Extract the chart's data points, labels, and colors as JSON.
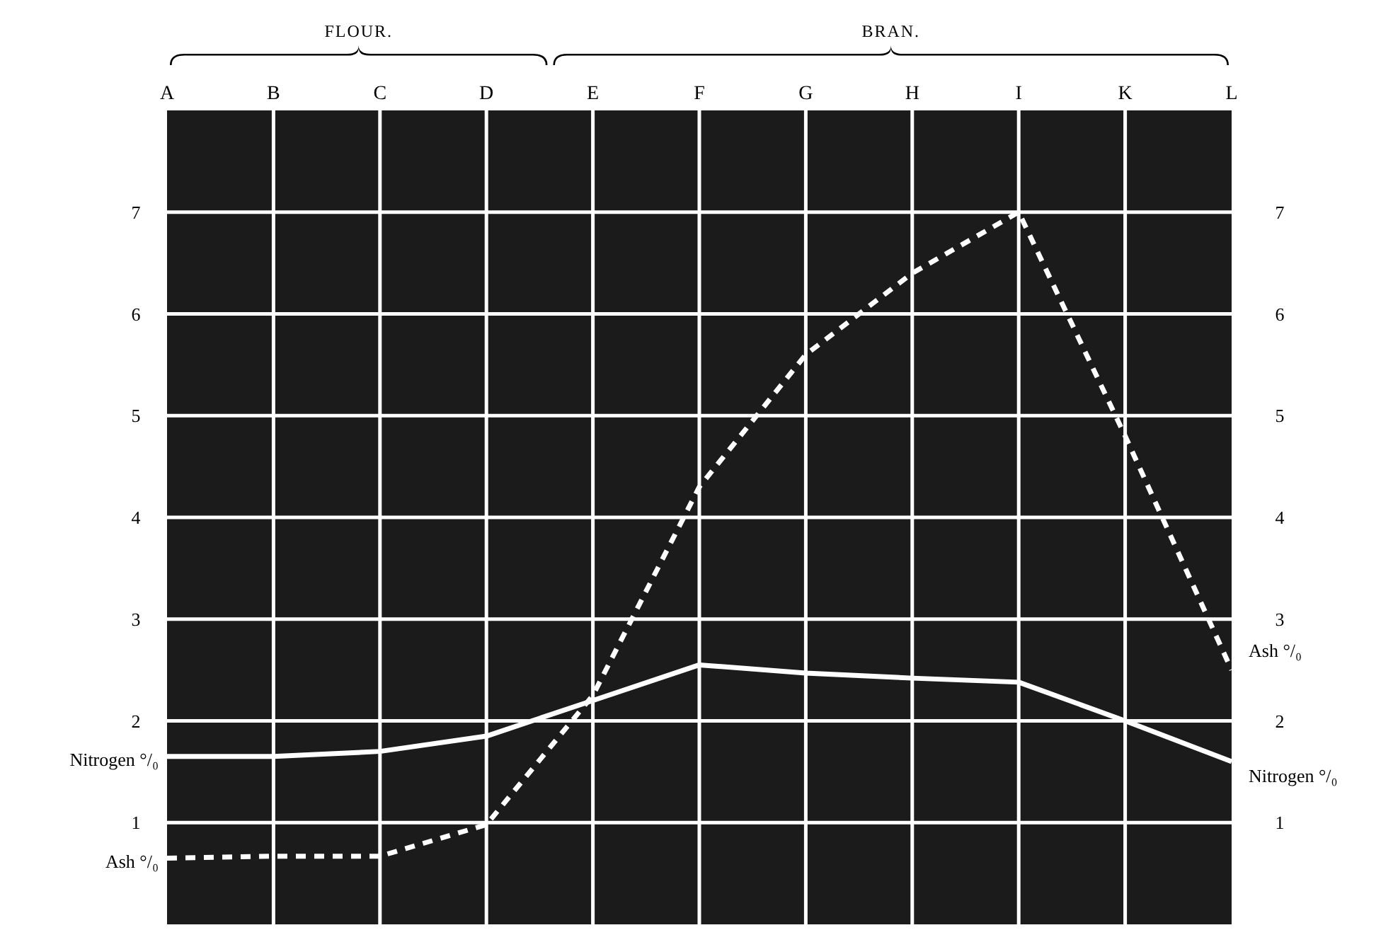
{
  "chart_data": {
    "type": "line",
    "categories": [
      "A",
      "B",
      "C",
      "D",
      "E",
      "F",
      "G",
      "H",
      "I",
      "K",
      "L"
    ],
    "series": [
      {
        "name": "Nitrogen °/₀",
        "color": "#ffffff",
        "line_style": "solid",
        "values": [
          1.65,
          1.65,
          1.7,
          1.85,
          2.2,
          2.55,
          2.47,
          2.42,
          2.38,
          2.0,
          1.6
        ]
      },
      {
        "name": "Ash °/₀",
        "color": "#ffffff",
        "line_style": "dashed",
        "values": [
          0.65,
          0.67,
          0.67,
          0.98,
          2.25,
          4.3,
          5.6,
          6.4,
          7.0,
          4.8,
          2.5
        ]
      }
    ],
    "ylim": [
      0,
      8
    ],
    "yticks": [
      1,
      2,
      3,
      4,
      5,
      6,
      7
    ],
    "y2lim": [
      0,
      8
    ],
    "y2ticks": [
      1,
      2,
      3,
      4,
      5,
      6,
      7
    ],
    "grid": true,
    "marker": "none",
    "annotations": [
      "FLOUR.",
      "BRAN."
    ]
  }
}
